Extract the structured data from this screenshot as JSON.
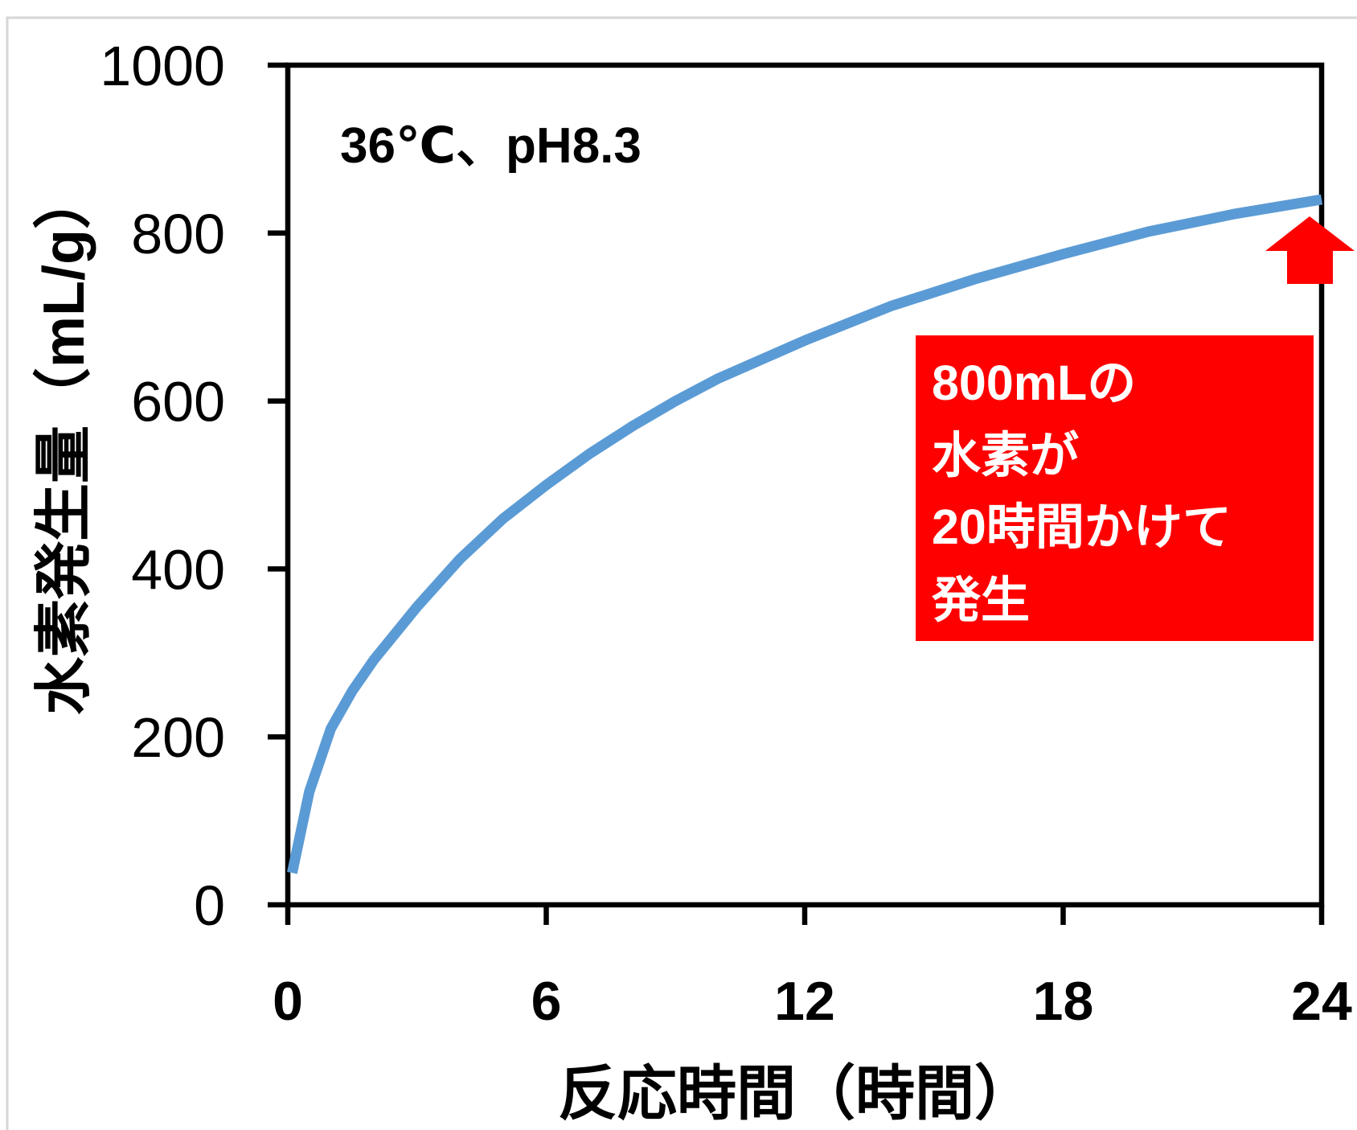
{
  "chart_data": {
    "type": "line",
    "title": "",
    "xlabel": "反応時間（時間）",
    "ylabel": "水素発生量（mL/g）",
    "xlim": [
      0,
      24
    ],
    "ylim": [
      0,
      1000
    ],
    "xticks": [
      0,
      6,
      12,
      18,
      24
    ],
    "yticks": [
      0,
      200,
      400,
      600,
      800,
      1000
    ],
    "grid": false,
    "legend": "none",
    "series": [
      {
        "color": "#5B9BD5",
        "x": [
          0.1,
          0.5,
          1,
          1.5,
          2,
          3,
          4,
          5,
          6,
          7,
          8,
          9,
          10,
          12,
          14,
          16,
          18,
          20,
          22,
          24
        ],
        "y": [
          38,
          135,
          210,
          255,
          292,
          355,
          412,
          460,
          500,
          537,
          570,
          600,
          627,
          672,
          713,
          746,
          775,
          802,
          823,
          840
        ]
      }
    ],
    "annotations": {
      "condition": "36℃、pH8.3",
      "callout_lines": [
        "800mLの",
        "水素が",
        "20時間かけて",
        "発生"
      ],
      "callout_color": "#FF0000",
      "arrow_color": "#FF0000"
    }
  }
}
